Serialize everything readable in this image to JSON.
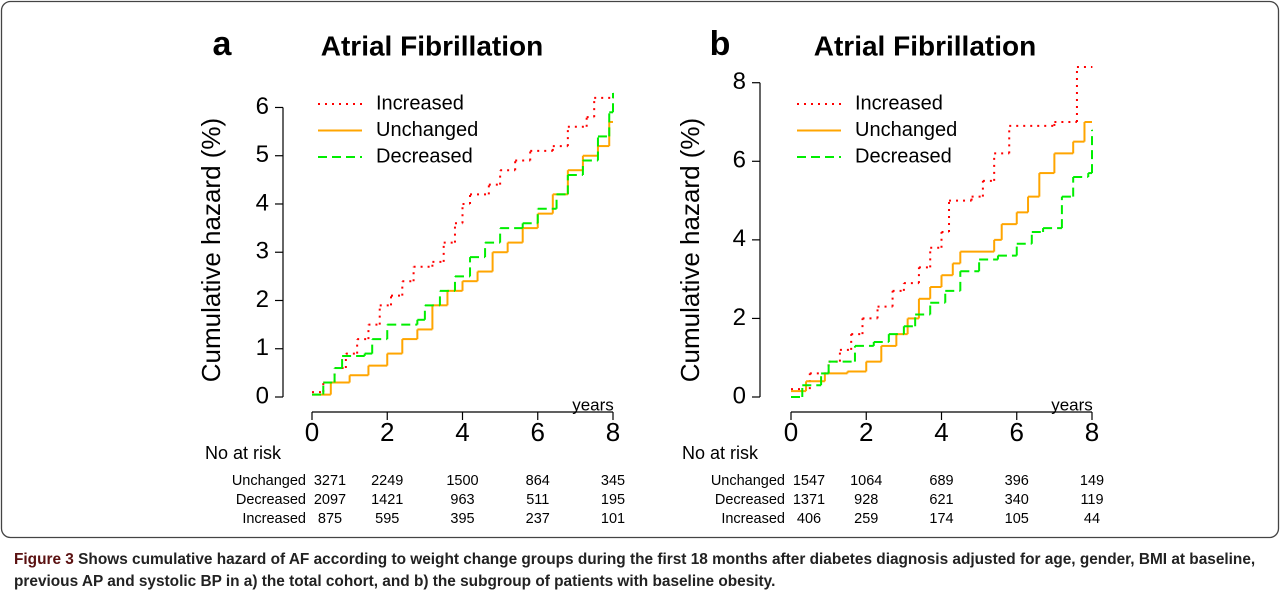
{
  "chart_data": [
    {
      "type": "step",
      "panel_label": "a",
      "title": "Atrial Fibrillation",
      "ylabel": "Cumulative hazard (%)",
      "xlabel": "years",
      "xlim": [
        0,
        8
      ],
      "xticks": [
        0,
        2,
        4,
        6,
        8
      ],
      "ylim": [
        0,
        6.3
      ],
      "yticks": [
        0,
        1,
        2,
        3,
        4,
        5,
        6
      ],
      "legend": "top-left",
      "series": [
        {
          "name": "Increased",
          "color": "#ff0000",
          "style": "dotted",
          "x": [
            0,
            0.3,
            0.6,
            0.9,
            1.2,
            1.5,
            1.8,
            2.1,
            2.4,
            2.7,
            3.2,
            3.5,
            3.8,
            4.0,
            4.2,
            4.7,
            5.0,
            5.4,
            5.8,
            6.4,
            6.8,
            7.3,
            7.5,
            8.0
          ],
          "values": [
            0.1,
            0.3,
            0.6,
            0.9,
            1.2,
            1.5,
            1.9,
            2.1,
            2.4,
            2.7,
            2.8,
            3.2,
            3.6,
            4.0,
            4.2,
            4.4,
            4.7,
            4.9,
            5.1,
            5.2,
            5.6,
            5.8,
            6.2,
            6.2
          ]
        },
        {
          "name": "Unchanged",
          "color": "#ffa500",
          "style": "solid",
          "x": [
            0,
            0.5,
            1,
            1.5,
            2,
            2.4,
            2.8,
            3.2,
            3.6,
            4,
            4.4,
            4.8,
            5.2,
            5.6,
            6,
            6.4,
            6.8,
            7.2,
            7.6,
            7.9,
            8
          ],
          "values": [
            0.05,
            0.3,
            0.45,
            0.65,
            0.9,
            1.2,
            1.4,
            1.9,
            2.2,
            2.4,
            2.6,
            3.0,
            3.2,
            3.5,
            3.8,
            4.2,
            4.7,
            5.0,
            5.2,
            5.7,
            5.7
          ]
        },
        {
          "name": "Decreased",
          "color": "#00ee00",
          "style": "dashed",
          "x": [
            0,
            0.3,
            0.6,
            0.8,
            1.4,
            1.6,
            2,
            2.8,
            3,
            3.4,
            3.8,
            4.2,
            4.6,
            5,
            5.6,
            6,
            6.5,
            6.8,
            7.2,
            7.6,
            7.9,
            8
          ],
          "values": [
            0.05,
            0.3,
            0.6,
            0.85,
            0.9,
            1.2,
            1.5,
            1.6,
            1.9,
            2.2,
            2.5,
            2.9,
            3.2,
            3.5,
            3.6,
            3.9,
            4.2,
            4.6,
            4.9,
            5.4,
            5.9,
            6.3
          ]
        }
      ],
      "risk_table": {
        "title": "No at risk",
        "rows": [
          {
            "name": "Unchanged",
            "values": [
              3271,
              2249,
              1500,
              864,
              345
            ]
          },
          {
            "name": "Decreased",
            "values": [
              2097,
              1421,
              963,
              511,
              195
            ]
          },
          {
            "name": "Increased",
            "values": [
              875,
              595,
              395,
              237,
              101
            ]
          }
        ]
      }
    },
    {
      "type": "step",
      "panel_label": "b",
      "title": "Atrial Fibrillation",
      "ylabel": "Cumulative hazard (%)",
      "xlabel": "years",
      "xlim": [
        0,
        8
      ],
      "xticks": [
        0,
        2,
        4,
        6,
        8
      ],
      "ylim": [
        0,
        8.4
      ],
      "yticks": [
        0,
        2,
        4,
        6,
        8
      ],
      "legend": "top-left",
      "series": [
        {
          "name": "Increased",
          "color": "#ff0000",
          "style": "dotted",
          "x": [
            0,
            0.5,
            1,
            1.3,
            1.6,
            1.9,
            2.3,
            2.7,
            3.0,
            3.4,
            3.7,
            4,
            4.2,
            4.8,
            5.1,
            5.4,
            5.8,
            7.0,
            7.6,
            8
          ],
          "values": [
            0.2,
            0.6,
            0.9,
            1.2,
            1.6,
            2.0,
            2.3,
            2.7,
            2.9,
            3.3,
            3.8,
            4.2,
            5.0,
            5.1,
            5.5,
            6.2,
            6.9,
            7.0,
            8.4,
            8.4
          ]
        },
        {
          "name": "Unchanged",
          "color": "#ffa500",
          "style": "solid",
          "x": [
            0,
            0.4,
            0.9,
            1.5,
            2,
            2.4,
            2.8,
            3.1,
            3.4,
            3.7,
            4,
            4.3,
            4.5,
            5.4,
            5.6,
            6,
            6.3,
            6.6,
            7,
            7.5,
            7.8,
            8
          ],
          "values": [
            0.15,
            0.4,
            0.6,
            0.65,
            0.9,
            1.3,
            1.6,
            2.0,
            2.5,
            2.8,
            3.1,
            3.4,
            3.7,
            4.0,
            4.4,
            4.7,
            5.1,
            5.7,
            6.2,
            6.5,
            7.0,
            7.0
          ]
        },
        {
          "name": "Decreased",
          "color": "#00ee00",
          "style": "dashed",
          "x": [
            0,
            0.3,
            0.8,
            1.0,
            1.7,
            2.2,
            2.6,
            3,
            3.3,
            3.7,
            4.1,
            4.5,
            5.0,
            5.5,
            6,
            6.4,
            6.7,
            7.2,
            7.5,
            7.9,
            8
          ],
          "values": [
            0.0,
            0.3,
            0.6,
            0.9,
            1.3,
            1.4,
            1.6,
            1.8,
            2.1,
            2.4,
            2.7,
            3.2,
            3.5,
            3.6,
            3.9,
            4.2,
            4.3,
            5.1,
            5.6,
            5.7,
            6.8
          ]
        }
      ],
      "risk_table": {
        "title": "No at risk",
        "rows": [
          {
            "name": "Unchanged",
            "values": [
              1547,
              1064,
              689,
              396,
              149
            ]
          },
          {
            "name": "Decreased",
            "values": [
              1371,
              928,
              621,
              340,
              119
            ]
          },
          {
            "name": "Increased",
            "values": [
              406,
              259,
              174,
              105,
              44
            ]
          }
        ]
      }
    }
  ],
  "caption": {
    "label": "Figure 3",
    "text": "Shows cumulative hazard of AF according to weight change groups during the first 18 months after diabetes diagnosis adjusted for age, gender, BMI at baseline, previous AP and systolic BP in a) the total cohort, and b) the subgroup of patients with baseline obesity."
  }
}
